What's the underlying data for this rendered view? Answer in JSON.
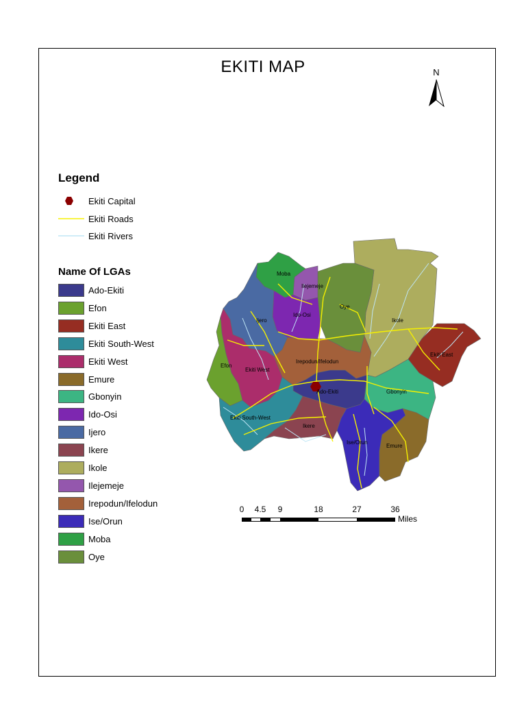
{
  "title": "EKITI MAP",
  "north_arrow": {
    "label": "N"
  },
  "legend": {
    "title": "Legend",
    "items": [
      {
        "label": "Ekiti Capital",
        "symbol": "hexagon",
        "color": "#8b0000"
      },
      {
        "label": "Ekiti Roads",
        "symbol": "line",
        "color": "#f5f000"
      },
      {
        "label": "Ekiti Rivers",
        "symbol": "line",
        "color": "#bfe6f5"
      }
    ]
  },
  "lga_legend": {
    "title": "Name Of LGAs",
    "items": [
      {
        "label": "Ado-Ekiti",
        "color": "#3b3a8c"
      },
      {
        "label": "Efon",
        "color": "#6ba12e"
      },
      {
        "label": "Ekiti East",
        "color": "#962d22"
      },
      {
        "label": "Ekiti South-West",
        "color": "#2e8c9a"
      },
      {
        "label": "Ekiti West",
        "color": "#ab2d6b"
      },
      {
        "label": "Emure",
        "color": "#8a6b2a"
      },
      {
        "label": "Gbonyin",
        "color": "#3cb583"
      },
      {
        "label": "Ido-Osi",
        "color": "#7d27b0"
      },
      {
        "label": "Ijero",
        "color": "#4a6aa3"
      },
      {
        "label": "Ikere",
        "color": "#8b4450"
      },
      {
        "label": "Ikole",
        "color": "#adad5e"
      },
      {
        "label": "Ilejemeje",
        "color": "#9457ad"
      },
      {
        "label": "Irepodun/Ifelodun",
        "color": "#a3603a"
      },
      {
        "label": "Ise/Orun",
        "color": "#3b2bb8"
      },
      {
        "label": "Moba",
        "color": "#2fa045"
      },
      {
        "label": "Oye",
        "color": "#6a8f3b"
      }
    ]
  },
  "map_labels": {
    "moba": "Moba",
    "ilejemeje": "Ilejemeje",
    "oye": "Oye",
    "ido_osi": "Ido-Osi",
    "ijero": "Ijero",
    "ikole": "Ikole",
    "irepodun": "Irepodun/Ifelodun",
    "efon": "Efon",
    "ekiti_west": "Ekiti West",
    "ekiti_east": "Ekiti East",
    "ado_ekiti": "Ado-Ekiti",
    "gbonyin": "Gbonyin",
    "ekiti_sw": "Ekiti South-West",
    "ikere": "Ikere",
    "ise_orun": "Ise/Orun",
    "emure": "Emure"
  },
  "scale_bar": {
    "ticks": [
      "0",
      "4.5",
      "9",
      "18",
      "27",
      "36"
    ],
    "unit": "Miles"
  }
}
